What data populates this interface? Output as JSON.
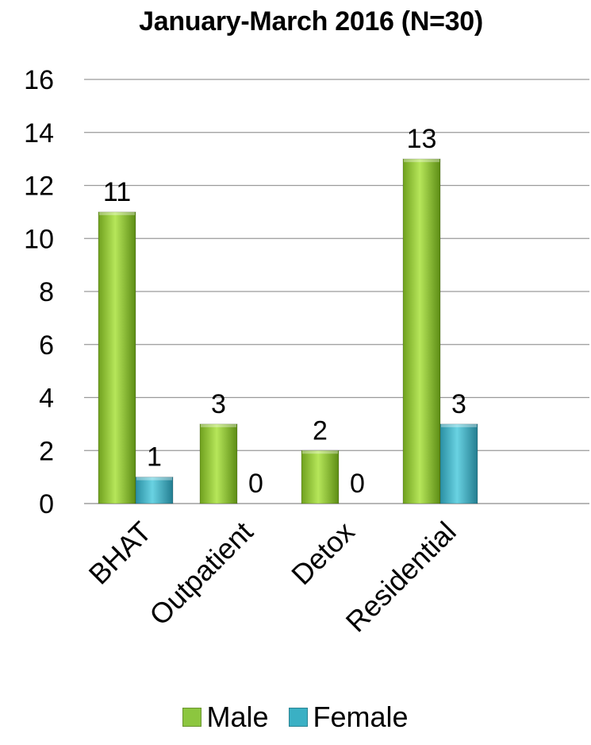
{
  "chart_data": {
    "type": "bar",
    "title": "January-March 2016 (N=30)",
    "xlabel": "",
    "ylabel": "",
    "categories": [
      "BHAT",
      "Outpatient",
      "Detox",
      "Residential"
    ],
    "series": [
      {
        "name": "Male",
        "values": [
          11,
          3,
          2,
          13
        ],
        "color": "#8cc63f"
      },
      {
        "name": "Female",
        "values": [
          1,
          0,
          0,
          3
        ],
        "color": "#3ab0c4"
      }
    ],
    "ylim": [
      0,
      16
    ],
    "yticks": [
      0,
      2,
      4,
      6,
      8,
      10,
      12,
      14,
      16
    ],
    "grid": true,
    "data_labels": true,
    "legend_position": "bottom"
  }
}
